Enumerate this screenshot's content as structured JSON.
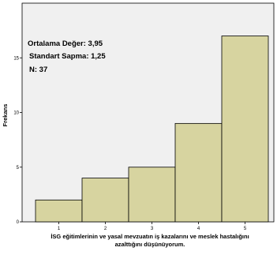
{
  "chart_data": {
    "type": "bar",
    "categories": [
      "1",
      "2",
      "3",
      "4",
      "5"
    ],
    "values": [
      2,
      4,
      5,
      9,
      17
    ],
    "title": "",
    "xlabel": [
      "İSG eğitimlerinin ve yasal mevzuatın iş kazalarını ve meslek hastalığını",
      "azalttığını düşünüyorum."
    ],
    "ylabel": "Frekans",
    "ylim": [
      0,
      20
    ],
    "yticks": [
      0,
      5,
      10,
      15
    ],
    "grid": false,
    "bar_color": "#d7d4a0",
    "bar_edge_color": "#000000",
    "plot_background": "#f0f0f0",
    "stats": [
      "Ortalama Değer: 3,95",
      "Standart Sapma: 1,25",
      "N: 37"
    ]
  }
}
